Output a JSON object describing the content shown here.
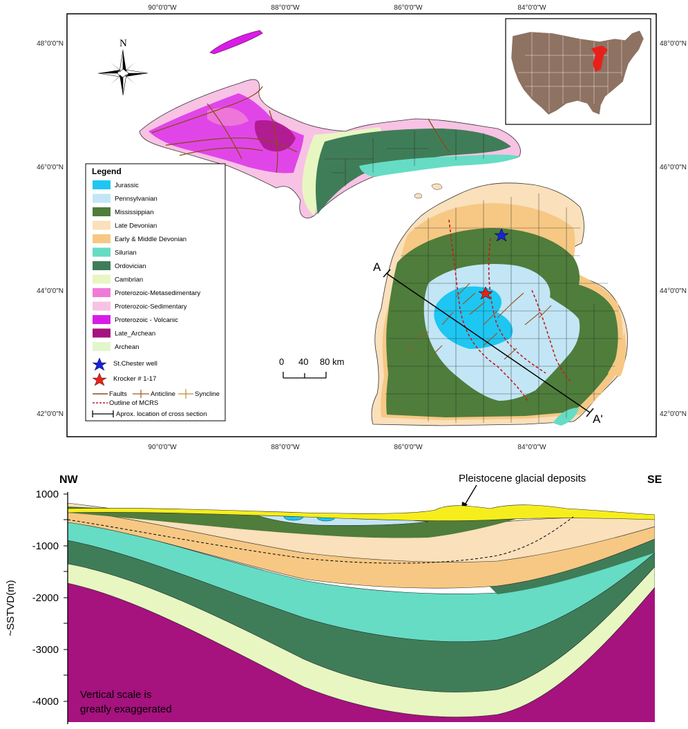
{
  "map": {
    "longitude_labels": [
      "90°0'0\"W",
      "88°0'0\"W",
      "86°0'0\"W",
      "84°0'0\"W"
    ],
    "latitude_labels": [
      "48°0'0\"N",
      "46°0'0\"N",
      "44°0'0\"N",
      "42°0'0\"N"
    ],
    "north_label": "N",
    "legend": {
      "title": "Legend",
      "units": [
        {
          "label": "Jurassic",
          "color": "#1ec6f2"
        },
        {
          "label": "Pennsylvanian",
          "color": "#c2e6f6"
        },
        {
          "label": "Mississippian",
          "color": "#4f7d3c"
        },
        {
          "label": "Late Devonian",
          "color": "#fae0bb"
        },
        {
          "label": "Early & Middle Devonian",
          "color": "#f6c884"
        },
        {
          "label": "Silurian",
          "color": "#66dcc4"
        },
        {
          "label": "Ordovician",
          "color": "#3f7d58"
        },
        {
          "label": "Cambrian",
          "color": "#e8f6c2"
        },
        {
          "label": "Proterozoic-Metasedimentary",
          "color": "#f07ad8"
        },
        {
          "label": "Proterozoic-Sedimentary",
          "color": "#f8c2e4"
        },
        {
          "label": "Proterozoic - Volcanic",
          "color": "#d81ce8"
        },
        {
          "label": "Late_Archean",
          "color": "#a6127e"
        },
        {
          "label": "Archean",
          "color": "#e2f6cc"
        }
      ],
      "wells": [
        {
          "label": "St.Chester well",
          "color": "#1a22d8"
        },
        {
          "label": "Krocker # 1-17",
          "color": "#e8201c"
        }
      ],
      "structures": {
        "faults": "Faults",
        "anticline": "Anticline",
        "syncline": "Syncline"
      },
      "mcrs": "Outline of MCRS",
      "cross_section": "Aprox. location of cross section"
    },
    "scale_labels": [
      "0",
      "40",
      "80 km"
    ],
    "section_line": {
      "start": "A",
      "end": "A'"
    }
  },
  "cross_section": {
    "left_label": "NW",
    "right_label": "SE",
    "y_axis_label": "~SSTVD(m)",
    "y_ticks": [
      "1000",
      "-1000",
      "-2000",
      "-3000",
      "-4000"
    ],
    "annotation": "Pleistocene glacial deposits",
    "note_line1": "Vertical scale is",
    "note_line2": "greatly exaggerated"
  }
}
